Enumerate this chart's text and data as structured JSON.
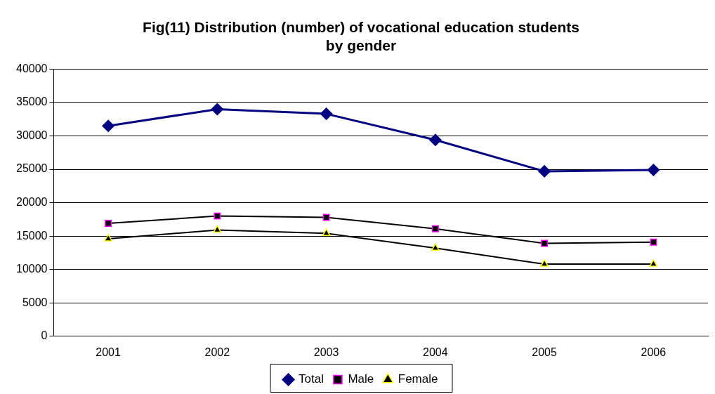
{
  "chart_data": {
    "type": "line",
    "title": "Fig(11) Distribution (number) of vocational education students\nby gender",
    "categories": [
      "2001",
      "2002",
      "2003",
      "2004",
      "2005",
      "2006"
    ],
    "series": [
      {
        "name": "Total",
        "color": "#000080",
        "marker": "diamond",
        "values": [
          31500,
          34000,
          33300,
          29400,
          24700,
          24900
        ]
      },
      {
        "name": "Male",
        "color": "#000000",
        "marker": "square",
        "values": [
          16900,
          18000,
          17800,
          16100,
          13900,
          14100
        ]
      },
      {
        "name": "Female",
        "color": "#000000",
        "marker": "triangle",
        "values": [
          14600,
          15900,
          15400,
          13200,
          10800,
          10800
        ]
      }
    ],
    "ylim": [
      0,
      40000
    ],
    "yticks": [
      0,
      5000,
      10000,
      15000,
      20000,
      25000,
      30000,
      35000,
      40000
    ],
    "grid": "y",
    "legend": "bottom",
    "line_style": "solid"
  }
}
